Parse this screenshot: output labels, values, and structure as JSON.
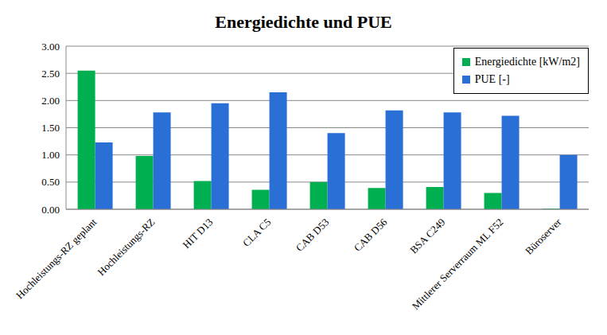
{
  "chart_data": {
    "type": "bar",
    "title": "Energiedichte und PUE",
    "categories": [
      "Hochleistungs-RZ geplant",
      "Hochleistungs-RZ",
      "HIT D13",
      "CLA C5",
      "CAB D53",
      "CAB D56",
      "BSA C249",
      "Mittlerer Serverraum ML F52",
      "Büroserver"
    ],
    "series": [
      {
        "name": "Energiedichte [kW/m2]",
        "color": "#00b050",
        "values": [
          2.55,
          0.98,
          0.52,
          0.36,
          0.5,
          0.39,
          0.41,
          0.3,
          0.01
        ]
      },
      {
        "name": "PUE [-]",
        "color": "#2a6fd6",
        "values": [
          1.23,
          1.78,
          1.95,
          2.15,
          1.4,
          1.82,
          1.78,
          1.72,
          1.0
        ]
      }
    ],
    "ylim": [
      0,
      3
    ],
    "yticks": [
      {
        "value": 0,
        "label": "0.00"
      },
      {
        "value": 0.5,
        "label": "0.50"
      },
      {
        "value": 1,
        "label": "1.00"
      },
      {
        "value": 1.5,
        "label": "1.50"
      },
      {
        "value": 2,
        "label": "2.00"
      },
      {
        "value": 2.5,
        "label": "2.50"
      },
      {
        "value": 3,
        "label": "3.00"
      }
    ],
    "grid": true,
    "legend": "top-right"
  }
}
